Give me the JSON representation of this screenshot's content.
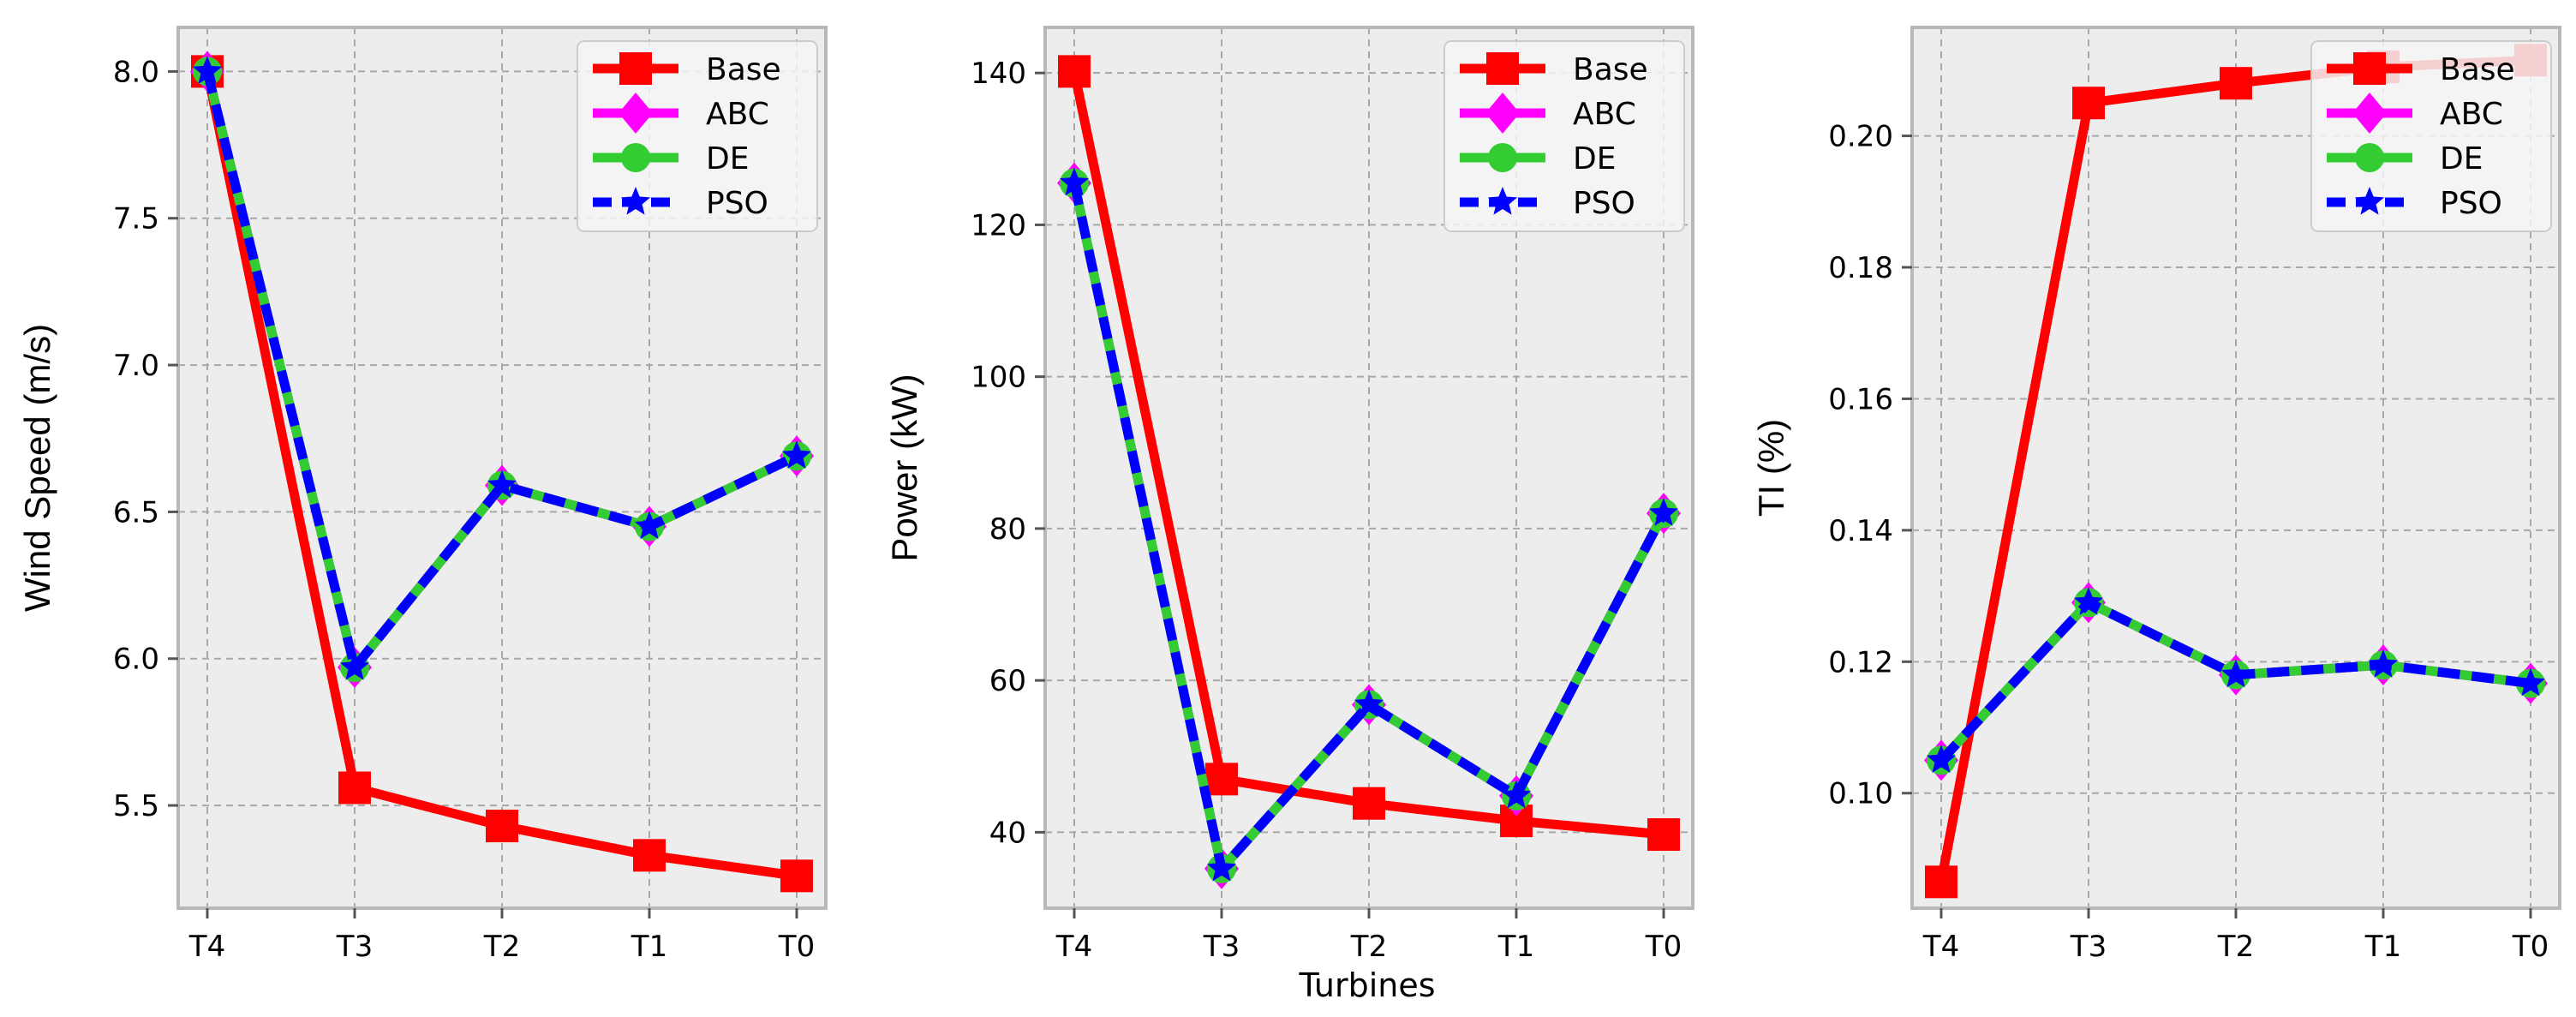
{
  "figure": {
    "xlabel": "Turbines"
  },
  "legend_labels": [
    "Base",
    "ABC",
    "DE",
    "PSO"
  ],
  "colors": {
    "Base": "#ff0000",
    "ABC": "#ff00ff",
    "DE": "#33cc33",
    "PSO": "#0000ff",
    "axes_bg": "#ededed",
    "grid": "#a8a8a8",
    "spine": "#b8b8b8"
  },
  "chart_data": [
    {
      "type": "line",
      "title": "",
      "xlabel": "",
      "ylabel": "Wind Speed (m/s)",
      "categories": [
        "T4",
        "T3",
        "T2",
        "T1",
        "T0"
      ],
      "ylim": [
        5.15,
        8.15
      ],
      "yticks": [
        5.5,
        6.0,
        6.5,
        7.0,
        7.5,
        8.0
      ],
      "ytick_labels": [
        "5.5",
        "6.0",
        "6.5",
        "7.0",
        "7.5",
        "8.0"
      ],
      "legend": "upper right",
      "series": [
        {
          "name": "Base",
          "values": [
            8.0,
            5.56,
            5.43,
            5.33,
            5.26
          ]
        },
        {
          "name": "ABC",
          "values": [
            8.0,
            5.97,
            6.59,
            6.45,
            6.69
          ]
        },
        {
          "name": "DE",
          "values": [
            8.0,
            5.97,
            6.59,
            6.45,
            6.69
          ]
        },
        {
          "name": "PSO",
          "values": [
            8.0,
            5.97,
            6.59,
            6.45,
            6.69
          ]
        }
      ]
    },
    {
      "type": "line",
      "title": "",
      "xlabel": "",
      "ylabel": "Power (kW)",
      "categories": [
        "T4",
        "T3",
        "T2",
        "T1",
        "T0"
      ],
      "ylim": [
        30,
        146
      ],
      "yticks": [
        40,
        60,
        80,
        100,
        120,
        140
      ],
      "ytick_labels": [
        "40",
        "60",
        "80",
        "100",
        "120",
        "140"
      ],
      "legend": "upper right",
      "series": [
        {
          "name": "Base",
          "values": [
            140.2,
            47.0,
            43.8,
            41.5,
            39.7
          ]
        },
        {
          "name": "ABC",
          "values": [
            125.5,
            35.2,
            56.8,
            44.8,
            82.0
          ]
        },
        {
          "name": "DE",
          "values": [
            125.5,
            35.2,
            56.8,
            44.8,
            82.0
          ]
        },
        {
          "name": "PSO",
          "values": [
            125.5,
            35.2,
            56.8,
            44.8,
            82.0
          ]
        }
      ]
    },
    {
      "type": "line",
      "title": "",
      "xlabel": "",
      "ylabel": "TI (%)",
      "categories": [
        "T4",
        "T3",
        "T2",
        "T1",
        "T0"
      ],
      "ylim": [
        0.0825,
        0.2165
      ],
      "yticks": [
        0.1,
        0.12,
        0.14,
        0.16,
        0.18,
        0.2
      ],
      "ytick_labels": [
        "0.10",
        "0.12",
        "0.14",
        "0.16",
        "0.18",
        "0.20"
      ],
      "legend": "upper right",
      "series": [
        {
          "name": "Base",
          "values": [
            0.0865,
            0.205,
            0.208,
            0.2105,
            0.2115
          ]
        },
        {
          "name": "ABC",
          "values": [
            0.105,
            0.129,
            0.118,
            0.1195,
            0.1167
          ]
        },
        {
          "name": "DE",
          "values": [
            0.105,
            0.129,
            0.118,
            0.1195,
            0.1167
          ]
        },
        {
          "name": "PSO",
          "values": [
            0.105,
            0.129,
            0.118,
            0.1195,
            0.1167
          ]
        }
      ]
    }
  ]
}
